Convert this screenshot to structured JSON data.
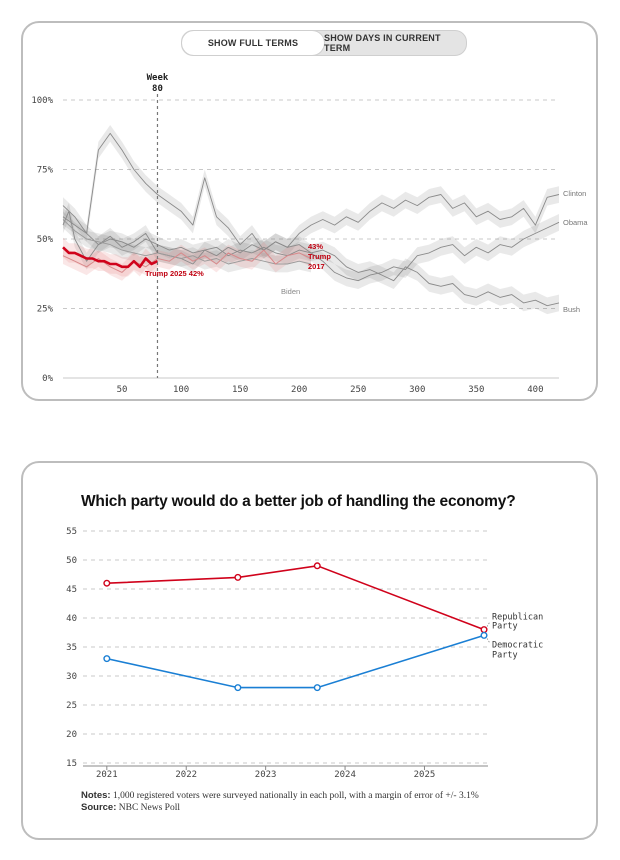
{
  "card1": {
    "toggle": {
      "options": [
        "SHOW FULL TERMS",
        "SHOW DAYS IN CURRENT TERM"
      ],
      "selected": "SHOW FULL TERMS"
    },
    "chart_data": {
      "type": "line",
      "x_ticks": [
        50,
        100,
        150,
        200,
        250,
        300,
        350,
        400
      ],
      "y_ticks": [
        "0%",
        "25%",
        "50%",
        "75%",
        "100%"
      ],
      "xlim": [
        0,
        420
      ],
      "ylim": [
        0,
        100
      ],
      "grid": true,
      "marker": {
        "label": "Week 80",
        "x": 80
      },
      "series": [
        {
          "name": "Clinton",
          "color": "#8a8a8a",
          "label": "Clinton",
          "x": [
            0,
            5,
            10,
            20,
            30,
            40,
            50,
            60,
            70,
            80,
            90,
            100,
            110,
            120,
            130,
            140,
            150,
            160,
            170,
            180,
            190,
            200,
            210,
            220,
            230,
            240,
            250,
            260,
            270,
            280,
            290,
            300,
            310,
            320,
            330,
            340,
            350,
            360,
            370,
            380,
            390,
            400,
            410,
            420
          ],
          "y": [
            55,
            60,
            50,
            42,
            48,
            51,
            47,
            49,
            52,
            45,
            44,
            43,
            41,
            46,
            44,
            47,
            45,
            48,
            46,
            49,
            47,
            52,
            55,
            57,
            55,
            58,
            56,
            60,
            63,
            61,
            64,
            62,
            65,
            66,
            61,
            63,
            58,
            60,
            57,
            58,
            61,
            55,
            65,
            66
          ]
        },
        {
          "name": "Obama",
          "color": "#8a8a8a",
          "label": "Obama",
          "x": [
            0,
            10,
            20,
            30,
            40,
            50,
            60,
            70,
            80,
            90,
            100,
            110,
            120,
            130,
            140,
            150,
            160,
            170,
            180,
            190,
            200,
            210,
            220,
            230,
            240,
            250,
            260,
            270,
            280,
            290,
            300,
            310,
            320,
            330,
            340,
            350,
            360,
            370,
            380,
            390,
            400,
            410,
            420
          ],
          "y": [
            62,
            58,
            52,
            48,
            50,
            49,
            47,
            50,
            48,
            46,
            47,
            45,
            46,
            47,
            44,
            46,
            45,
            47,
            45,
            44,
            46,
            45,
            42,
            38,
            36,
            35,
            37,
            38,
            40,
            39,
            44,
            45,
            47,
            48,
            44,
            47,
            45,
            48,
            47,
            50,
            52,
            54,
            56
          ]
        },
        {
          "name": "Bush",
          "color": "#8a8a8a",
          "label": "Bush",
          "x": [
            0,
            10,
            20,
            30,
            40,
            50,
            60,
            70,
            80,
            90,
            100,
            110,
            120,
            130,
            140,
            150,
            160,
            170,
            180,
            190,
            200,
            210,
            220,
            230,
            240,
            250,
            260,
            270,
            280,
            290,
            300,
            310,
            320,
            330,
            340,
            350,
            360,
            370,
            380,
            390,
            400,
            410,
            420
          ],
          "y": [
            58,
            55,
            52,
            82,
            88,
            82,
            75,
            70,
            66,
            63,
            60,
            55,
            72,
            58,
            54,
            48,
            52,
            46,
            49,
            47,
            48,
            45,
            46,
            44,
            40,
            38,
            39,
            37,
            35,
            40,
            38,
            34,
            33,
            34,
            30,
            29,
            31,
            29,
            30,
            27,
            28,
            26,
            27
          ]
        },
        {
          "name": "Biden",
          "color": "#9a9a9a",
          "label": "Biden",
          "x": [
            0,
            10,
            20,
            30,
            40,
            50,
            60,
            70,
            80,
            90,
            100,
            110,
            120,
            130,
            140,
            150,
            160,
            170,
            180,
            190,
            200,
            210
          ],
          "y": [
            57,
            53,
            50,
            49,
            48,
            46,
            45,
            44,
            45,
            44,
            43,
            44,
            42,
            43,
            41,
            42,
            43,
            42,
            41,
            41,
            42,
            41
          ]
        },
        {
          "name": "Trump 2017",
          "color": "#d8888a",
          "label": "Trump 2017",
          "label_value": "43%",
          "x": [
            0,
            10,
            20,
            30,
            40,
            50,
            60,
            70,
            80,
            90,
            100,
            110,
            120,
            130,
            140,
            150,
            160,
            170,
            180,
            190,
            200,
            210
          ],
          "y": [
            44,
            42,
            40,
            43,
            40,
            38,
            42,
            40,
            43,
            42,
            45,
            42,
            44,
            41,
            45,
            43,
            42,
            46,
            41,
            44,
            45,
            43
          ]
        },
        {
          "name": "Trump 2025",
          "color": "#d0021b",
          "label": "Trump 2025",
          "label_value": "42%",
          "x": [
            0,
            5,
            10,
            15,
            20,
            25,
            30,
            35,
            40,
            45,
            50,
            55,
            60,
            65,
            70,
            75,
            80
          ],
          "y": [
            47,
            45,
            45,
            44,
            43,
            43,
            42,
            42,
            41,
            41,
            40,
            40,
            42,
            40,
            43,
            41,
            42
          ]
        }
      ],
      "annotations": [
        {
          "text": "Trump 2025 42%",
          "series": "Trump 2025"
        },
        {
          "text": "43%",
          "series": "Trump 2017"
        },
        {
          "text": "Trump",
          "series": "Trump 2017"
        },
        {
          "text": "2017",
          "series": "Trump 2017"
        },
        {
          "text": "Biden",
          "series": "Biden"
        },
        {
          "text": "Clinton",
          "series": "Clinton"
        },
        {
          "text": "Obama",
          "series": "Obama"
        },
        {
          "text": "Bush",
          "series": "Bush"
        }
      ]
    }
  },
  "card2": {
    "title": "Which party would do a better job of handling the economy?",
    "notes_label": "Notes:",
    "notes_text": "1,000 registered voters were surveyed nationally in each poll, with a margin of error of +/- 3.1%",
    "source_label": "Source:",
    "source_text": "NBC News Poll",
    "chart_data": {
      "type": "line",
      "x_ticks": [
        "2021",
        "2022",
        "2023",
        "2024",
        "2025"
      ],
      "y_ticks": [
        15,
        20,
        25,
        30,
        35,
        40,
        45,
        50,
        55
      ],
      "ylim": [
        15,
        55
      ],
      "xlim": [
        2020.7,
        2025.8
      ],
      "grid": true,
      "series": [
        {
          "name": "Republican Party",
          "label_lines": [
            "Republican",
            "Party"
          ],
          "color": "#d0021b",
          "x": [
            2021.0,
            2022.65,
            2023.65,
            2025.75
          ],
          "y": [
            46,
            47,
            49,
            38
          ]
        },
        {
          "name": "Democratic Party",
          "label_lines": [
            "Democratic",
            "Party"
          ],
          "color": "#1a7fd4",
          "x": [
            2021.0,
            2022.65,
            2023.65,
            2025.75
          ],
          "y": [
            33,
            28,
            28,
            37
          ]
        }
      ]
    }
  }
}
